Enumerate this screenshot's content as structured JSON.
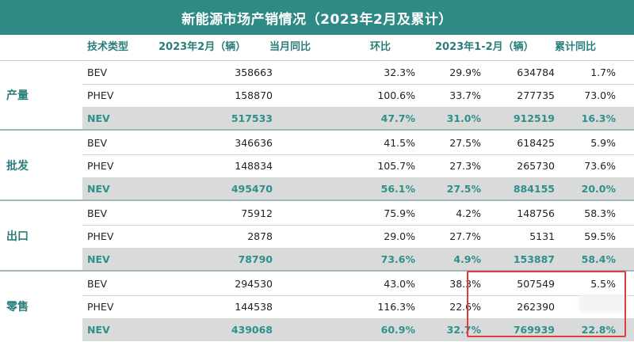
{
  "title": "新能源市场产销情况（2023年2月及累计）",
  "headers": {
    "type": "技术类型",
    "feb": "2023年2月（辆）",
    "yoy": "当月同比",
    "mom": "环比",
    "cum": "2023年1-2月（辆）",
    "cum_yoy": "累计同比"
  },
  "groups": [
    {
      "label": "产量",
      "rows": [
        {
          "type": "BEV",
          "feb": "358663",
          "yoy": "32.3%",
          "mom": "29.9%",
          "cum": "634784",
          "cum_yoy": "1.7%"
        },
        {
          "type": "PHEV",
          "feb": "158870",
          "yoy": "100.6%",
          "mom": "33.7%",
          "cum": "277735",
          "cum_yoy": "73.0%"
        },
        {
          "type": "NEV",
          "feb": "517533",
          "yoy": "47.7%",
          "mom": "31.0%",
          "cum": "912519",
          "cum_yoy": "16.3%"
        }
      ]
    },
    {
      "label": "批发",
      "rows": [
        {
          "type": "BEV",
          "feb": "346636",
          "yoy": "41.5%",
          "mom": "27.5%",
          "cum": "618425",
          "cum_yoy": "5.9%"
        },
        {
          "type": "PHEV",
          "feb": "148834",
          "yoy": "105.7%",
          "mom": "27.3%",
          "cum": "265730",
          "cum_yoy": "73.6%"
        },
        {
          "type": "NEV",
          "feb": "495470",
          "yoy": "56.1%",
          "mom": "27.5%",
          "cum": "884155",
          "cum_yoy": "20.0%"
        }
      ]
    },
    {
      "label": "出口",
      "rows": [
        {
          "type": "BEV",
          "feb": "75912",
          "yoy": "75.9%",
          "mom": "4.2%",
          "cum": "148756",
          "cum_yoy": "58.3%"
        },
        {
          "type": "PHEV",
          "feb": "2878",
          "yoy": "29.0%",
          "mom": "27.7%",
          "cum": "5131",
          "cum_yoy": "59.5%"
        },
        {
          "type": "NEV",
          "feb": "78790",
          "yoy": "73.6%",
          "mom": "4.9%",
          "cum": "153887",
          "cum_yoy": "58.4%"
        }
      ]
    },
    {
      "label": "零售",
      "rows": [
        {
          "type": "BEV",
          "feb": "294530",
          "yoy": "43.0%",
          "mom": "38.3%",
          "cum": "507549",
          "cum_yoy": "5.5%"
        },
        {
          "type": "PHEV",
          "feb": "144538",
          "yoy": "116.3%",
          "mom": "22.6%",
          "cum": "262390",
          "cum_yoy": ""
        },
        {
          "type": "NEV",
          "feb": "439068",
          "yoy": "60.9%",
          "mom": "32.7%",
          "cum": "769939",
          "cum_yoy": "22.8%"
        }
      ]
    }
  ],
  "colors": {
    "header_bg": "#2f8a86",
    "accent_text": "#2b7d7a",
    "nev_row_bg": "#d9dbdb",
    "nev_text": "#2f8f8a",
    "highlight_box": "#e23b3b"
  }
}
